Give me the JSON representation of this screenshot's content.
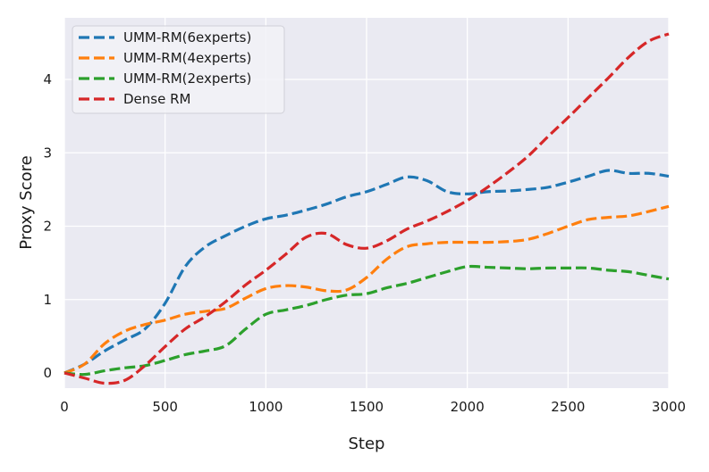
{
  "chart_data": {
    "type": "line",
    "title": "",
    "xlabel": "Step",
    "ylabel": "Proxy Score",
    "xlim": [
      0,
      3000
    ],
    "ylim": [
      -0.45,
      4.95
    ],
    "xticks": [
      0,
      500,
      1000,
      1500,
      2000,
      2500,
      3000
    ],
    "yticks": [
      0,
      1,
      2,
      3,
      4
    ],
    "grid": true,
    "line_style": "dashed",
    "legend_position": "upper left",
    "x": [
      0,
      100,
      200,
      300,
      400,
      500,
      600,
      700,
      800,
      900,
      1000,
      1100,
      1200,
      1300,
      1400,
      1500,
      1600,
      1700,
      1800,
      1900,
      2000,
      2100,
      2200,
      2300,
      2400,
      2500,
      2600,
      2700,
      2800,
      2900,
      3000
    ],
    "series": [
      {
        "name": "UMM-RM(6experts)",
        "color": "#1f77b4",
        "values": [
          0,
          0.12,
          0.3,
          0.45,
          0.6,
          0.95,
          1.45,
          1.72,
          1.87,
          2.0,
          2.1,
          2.15,
          2.22,
          2.3,
          2.4,
          2.47,
          2.57,
          2.67,
          2.62,
          2.47,
          2.44,
          2.47,
          2.48,
          2.5,
          2.53,
          2.6,
          2.68,
          2.76,
          2.72,
          2.72,
          2.68
        ]
      },
      {
        "name": "UMM-RM(4experts)",
        "color": "#ff7f0e",
        "values": [
          0,
          0.12,
          0.4,
          0.57,
          0.66,
          0.72,
          0.8,
          0.84,
          0.88,
          1.02,
          1.15,
          1.19,
          1.17,
          1.12,
          1.13,
          1.3,
          1.55,
          1.72,
          1.76,
          1.78,
          1.78,
          1.78,
          1.79,
          1.82,
          1.9,
          2.0,
          2.09,
          2.12,
          2.14,
          2.2,
          2.27
        ]
      },
      {
        "name": "UMM-RM(2experts)",
        "color": "#2ca02c",
        "values": [
          0,
          -0.02,
          0.03,
          0.07,
          0.1,
          0.17,
          0.25,
          0.3,
          0.37,
          0.6,
          0.8,
          0.86,
          0.92,
          1.0,
          1.06,
          1.08,
          1.16,
          1.22,
          1.3,
          1.38,
          1.45,
          1.44,
          1.43,
          1.42,
          1.43,
          1.43,
          1.43,
          1.4,
          1.38,
          1.33,
          1.28
        ]
      },
      {
        "name": "Dense RM",
        "color": "#d62728",
        "values": [
          0,
          -0.07,
          -0.14,
          -0.1,
          0.1,
          0.36,
          0.6,
          0.77,
          0.97,
          1.2,
          1.4,
          1.62,
          1.85,
          1.9,
          1.75,
          1.7,
          1.8,
          1.96,
          2.07,
          2.2,
          2.35,
          2.53,
          2.73,
          2.95,
          3.22,
          3.48,
          3.75,
          4.02,
          4.3,
          4.52,
          4.62
        ]
      }
    ]
  },
  "legend": {
    "items": [
      {
        "label": "UMM-RM(6experts)",
        "color": "#1f77b4"
      },
      {
        "label": "UMM-RM(4experts)",
        "color": "#ff7f0e"
      },
      {
        "label": "UMM-RM(2experts)",
        "color": "#2ca02c"
      },
      {
        "label": "Dense RM",
        "color": "#d62728"
      }
    ]
  },
  "axes": {
    "xlabel": "Step",
    "ylabel": "Proxy Score",
    "xtick_labels": [
      "0",
      "500",
      "1000",
      "1500",
      "2000",
      "2500",
      "3000"
    ],
    "ytick_labels": [
      "0",
      "1",
      "2",
      "3",
      "4"
    ]
  },
  "style": {
    "plot_bg": "#eaeaf2",
    "grid_color": "#ffffff"
  }
}
